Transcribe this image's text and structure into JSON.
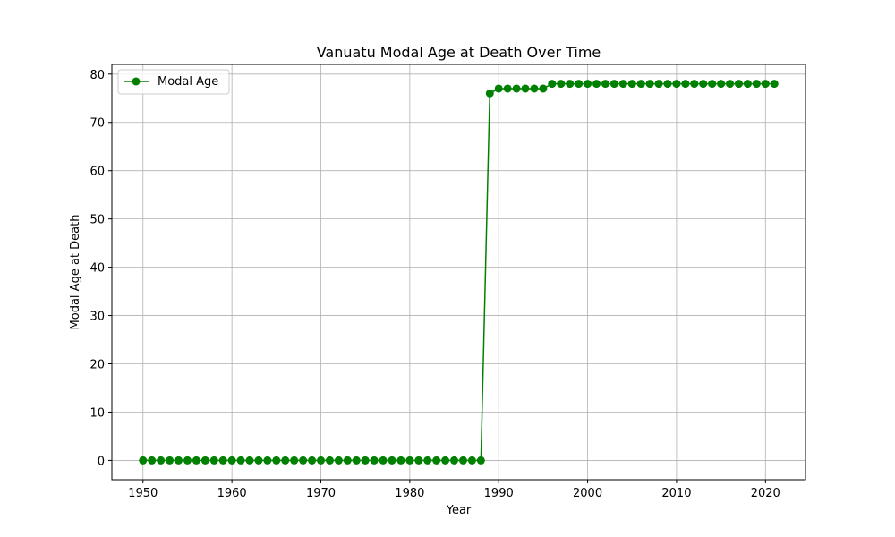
{
  "chart_data": {
    "type": "line",
    "title": "Vanuatu Modal Age at Death Over Time",
    "xlabel": "Year",
    "ylabel": "Modal Age at Death",
    "xlim": [
      1946.5,
      2024.5
    ],
    "ylim": [
      -4,
      82
    ],
    "xticks": [
      1950,
      1960,
      1970,
      1980,
      1990,
      2000,
      2010,
      2020
    ],
    "yticks": [
      0,
      10,
      20,
      30,
      40,
      50,
      60,
      70,
      80
    ],
    "grid": true,
    "legend_position": "top-left",
    "series": [
      {
        "name": "Modal Age",
        "color": "#008000",
        "marker": "circle",
        "x": [
          1950,
          1951,
          1952,
          1953,
          1954,
          1955,
          1956,
          1957,
          1958,
          1959,
          1960,
          1961,
          1962,
          1963,
          1964,
          1965,
          1966,
          1967,
          1968,
          1969,
          1970,
          1971,
          1972,
          1973,
          1974,
          1975,
          1976,
          1977,
          1978,
          1979,
          1980,
          1981,
          1982,
          1983,
          1984,
          1985,
          1986,
          1987,
          1988,
          1989,
          1990,
          1991,
          1992,
          1993,
          1994,
          1995,
          1996,
          1997,
          1998,
          1999,
          2000,
          2001,
          2002,
          2003,
          2004,
          2005,
          2006,
          2007,
          2008,
          2009,
          2010,
          2011,
          2012,
          2013,
          2014,
          2015,
          2016,
          2017,
          2018,
          2019,
          2020,
          2021
        ],
        "y": [
          0,
          0,
          0,
          0,
          0,
          0,
          0,
          0,
          0,
          0,
          0,
          0,
          0,
          0,
          0,
          0,
          0,
          0,
          0,
          0,
          0,
          0,
          0,
          0,
          0,
          0,
          0,
          0,
          0,
          0,
          0,
          0,
          0,
          0,
          0,
          0,
          0,
          0,
          0,
          76,
          77,
          77,
          77,
          77,
          77,
          77,
          78,
          78,
          78,
          78,
          78,
          78,
          78,
          78,
          78,
          78,
          78,
          78,
          78,
          78,
          78,
          78,
          78,
          78,
          78,
          78,
          78,
          78,
          78,
          78,
          78,
          78
        ]
      }
    ]
  }
}
